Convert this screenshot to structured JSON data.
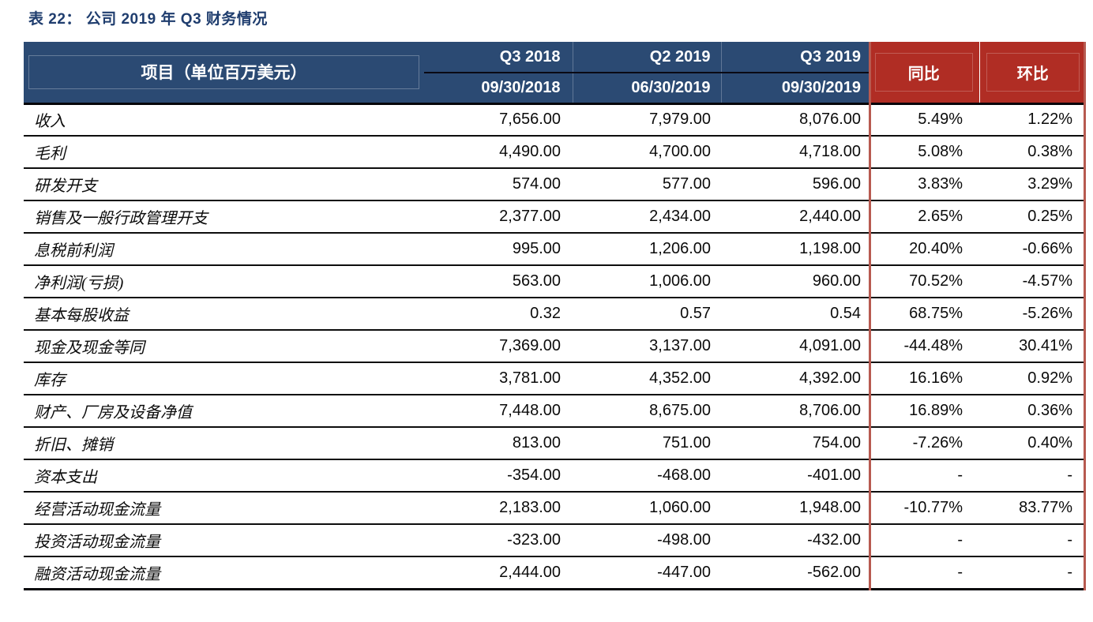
{
  "page": {
    "title": "表 22：  公司 2019 年 Q3 财务情况"
  },
  "colors": {
    "header_navy": "#2b4a73",
    "header_red": "#b02d24",
    "red_rule": "#b75a50",
    "title_navy": "#1f3d6e",
    "row_rule_black": "#0d0d0d"
  },
  "table": {
    "item_column_header": "项目（单位百万美元）",
    "period_columns": [
      {
        "quarter": "Q3 2018",
        "date": "09/30/2018"
      },
      {
        "quarter": "Q2 2019",
        "date": "06/30/2019"
      },
      {
        "quarter": "Q3 2019",
        "date": "09/30/2019"
      }
    ],
    "yoy_header": "同比",
    "qoq_header": "环比",
    "rows": [
      {
        "item": "收入",
        "q3_2018": "7,656.00",
        "q2_2019": "7,979.00",
        "q3_2019": "8,076.00",
        "yoy": "5.49%",
        "qoq": "1.22%"
      },
      {
        "item": "毛利",
        "q3_2018": "4,490.00",
        "q2_2019": "4,700.00",
        "q3_2019": "4,718.00",
        "yoy": "5.08%",
        "qoq": "0.38%"
      },
      {
        "item": "研发开支",
        "q3_2018": "574.00",
        "q2_2019": "577.00",
        "q3_2019": "596.00",
        "yoy": "3.83%",
        "qoq": "3.29%"
      },
      {
        "item": "销售及一般行政管理开支",
        "q3_2018": "2,377.00",
        "q2_2019": "2,434.00",
        "q3_2019": "2,440.00",
        "yoy": "2.65%",
        "qoq": "0.25%"
      },
      {
        "item": "息税前利润",
        "q3_2018": "995.00",
        "q2_2019": "1,206.00",
        "q3_2019": "1,198.00",
        "yoy": "20.40%",
        "qoq": "-0.66%"
      },
      {
        "item": "净利润(亏损)",
        "q3_2018": "563.00",
        "q2_2019": "1,006.00",
        "q3_2019": "960.00",
        "yoy": "70.52%",
        "qoq": "-4.57%"
      },
      {
        "item": "基本每股收益",
        "q3_2018": "0.32",
        "q2_2019": "0.57",
        "q3_2019": "0.54",
        "yoy": "68.75%",
        "qoq": "-5.26%"
      },
      {
        "item": "现金及现金等同",
        "q3_2018": "7,369.00",
        "q2_2019": "3,137.00",
        "q3_2019": "4,091.00",
        "yoy": "-44.48%",
        "qoq": "30.41%"
      },
      {
        "item": "库存",
        "q3_2018": "3,781.00",
        "q2_2019": "4,352.00",
        "q3_2019": "4,392.00",
        "yoy": "16.16%",
        "qoq": "0.92%"
      },
      {
        "item": "财产、厂房及设备净值",
        "q3_2018": "7,448.00",
        "q2_2019": "8,675.00",
        "q3_2019": "8,706.00",
        "yoy": "16.89%",
        "qoq": "0.36%"
      },
      {
        "item": "折旧、摊销",
        "q3_2018": "813.00",
        "q2_2019": "751.00",
        "q3_2019": "754.00",
        "yoy": "-7.26%",
        "qoq": "0.40%"
      },
      {
        "item": "资本支出",
        "q3_2018": "-354.00",
        "q2_2019": "-468.00",
        "q3_2019": "-401.00",
        "yoy": "-",
        "qoq": "-"
      },
      {
        "item": "经营活动现金流量",
        "q3_2018": "2,183.00",
        "q2_2019": "1,060.00",
        "q3_2019": "1,948.00",
        "yoy": "-10.77%",
        "qoq": "83.77%"
      },
      {
        "item": "投资活动现金流量",
        "q3_2018": "-323.00",
        "q2_2019": "-498.00",
        "q3_2019": "-432.00",
        "yoy": "-",
        "qoq": "-"
      },
      {
        "item": "融资活动现金流量",
        "q3_2018": "2,444.00",
        "q2_2019": "-447.00",
        "q3_2019": "-562.00",
        "yoy": "-",
        "qoq": "-"
      }
    ]
  }
}
